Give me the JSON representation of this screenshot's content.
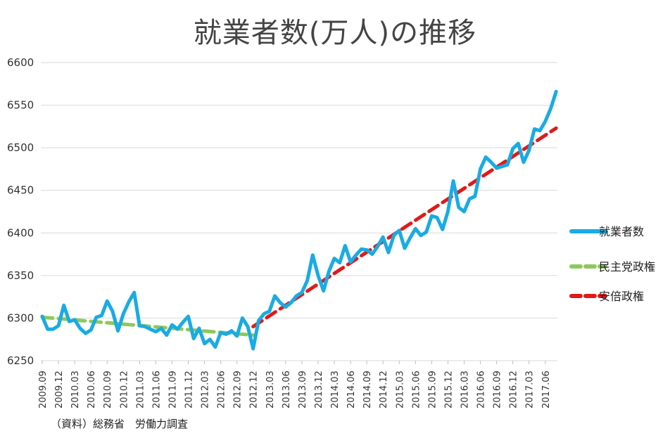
{
  "chart_data": {
    "type": "line",
    "title": "就業者数(万人)の推移",
    "xlabel": "",
    "ylabel": "",
    "ylim": [
      6250,
      6600
    ],
    "yticks": [
      6250,
      6300,
      6350,
      6400,
      6450,
      6500,
      6550,
      6600
    ],
    "grid": true,
    "legend_position": "right",
    "x_start": "2009.09",
    "xtick_labels": [
      "2009.09",
      "2009.12",
      "2010.03",
      "2010.06",
      "2010.09",
      "2010.12",
      "2011.03",
      "2011.06",
      "2011.09",
      "2011.12",
      "2012.03",
      "2012.06",
      "2012.09",
      "2012.12",
      "2013.03",
      "2013.06",
      "2013.09",
      "2013.12",
      "2014.03",
      "2014.06",
      "2014.09",
      "2014.12",
      "2015.03",
      "2015.06",
      "2015.09",
      "2015.12",
      "2016.03",
      "2016.06",
      "2016.09",
      "2016.12",
      "2017.03",
      "2017.06"
    ],
    "series": [
      {
        "name": "就業者数",
        "color": "#1aabe3",
        "style": "solid",
        "values": [
          6302,
          6287,
          6287,
          6291,
          6315,
          6296,
          6298,
          6288,
          6282,
          6286,
          6301,
          6303,
          6320,
          6308,
          6285,
          6305,
          6319,
          6330,
          6291,
          6290,
          6287,
          6284,
          6288,
          6280,
          6292,
          6287,
          6295,
          6302,
          6276,
          6288,
          6270,
          6275,
          6266,
          6283,
          6281,
          6285,
          6279,
          6300,
          6290,
          6264,
          6297,
          6305,
          6308,
          6326,
          6318,
          6313,
          6318,
          6326,
          6330,
          6344,
          6374,
          6350,
          6332,
          6355,
          6370,
          6365,
          6385,
          6366,
          6374,
          6381,
          6380,
          6375,
          6384,
          6395,
          6377,
          6397,
          6403,
          6382,
          6394,
          6405,
          6397,
          6401,
          6420,
          6418,
          6404,
          6425,
          6461,
          6430,
          6425,
          6440,
          6443,
          6475,
          6489,
          6483,
          6476,
          6478,
          6480,
          6499,
          6505,
          6483,
          6497,
          6522,
          6520,
          6531,
          6546,
          6566
        ]
      },
      {
        "name": "民主党政権",
        "color": "#8cc95a",
        "style": "dashed",
        "start_index": 0,
        "values": [
          6301,
          6280
        ]
      },
      {
        "name": "安倍政権",
        "color": "#e01a1a",
        "style": "dashed",
        "start_index": 39,
        "values": [
          6290,
          6523
        ]
      }
    ]
  },
  "source_note": "（資料）総務省　労働力調査"
}
